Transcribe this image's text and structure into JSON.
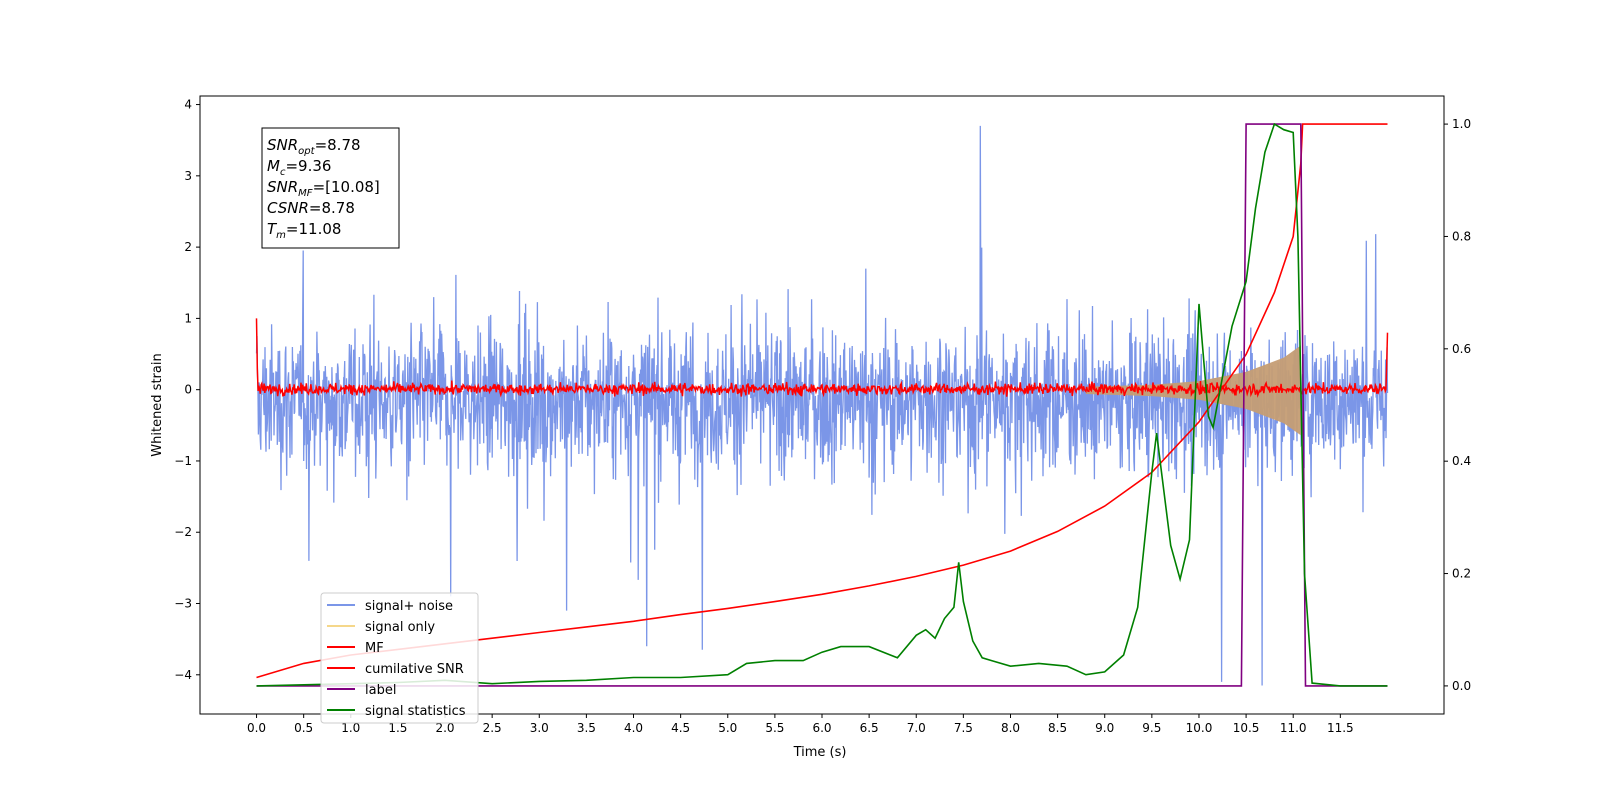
{
  "chart_data": {
    "type": "line",
    "xlabel": "Time (s)",
    "ylabel": "Whitened strain",
    "xlim": [
      -0.6,
      12.6
    ],
    "ylim": [
      -4.55,
      4.12
    ],
    "ylim_right": [
      -0.05,
      1.05
    ],
    "x_ticks": [
      0.0,
      0.5,
      1.0,
      1.5,
      2.0,
      2.5,
      3.0,
      3.5,
      4.0,
      4.5,
      5.0,
      5.5,
      6.0,
      6.5,
      7.0,
      7.5,
      8.0,
      8.5,
      9.0,
      9.5,
      10.0,
      10.5,
      11.0,
      11.5
    ],
    "x_tick_labels": [
      "0.0",
      "0.5",
      "1.0",
      "1.5",
      "2.0",
      "2.5",
      "3.0",
      "3.5",
      "4.0",
      "4.5",
      "5.0",
      "5.5",
      "6.0",
      "6.5",
      "7.0",
      "7.5",
      "8.0",
      "8.5",
      "9.0",
      "9.5",
      "10.0",
      "10.5",
      "11.0",
      "11.5"
    ],
    "y_ticks_left": [
      -4,
      -3,
      -2,
      -1,
      0,
      1,
      2,
      3,
      4
    ],
    "y_tick_labels_left": [
      "−4",
      "−3",
      "−2",
      "−1",
      "0",
      "1",
      "2",
      "3",
      "4"
    ],
    "y_ticks_right": [
      0.0,
      0.2,
      0.4,
      0.6,
      0.8,
      1.0
    ],
    "y_tick_labels_right": [
      "0.0",
      "0.2",
      "0.4",
      "0.6",
      "0.8",
      "1.0"
    ],
    "grid": false,
    "legend_position": "lower-left",
    "colors": {
      "signal_noise": "#7b96e8",
      "signal_only": "#c59d74",
      "mf": "#ff0000",
      "cumulative_snr": "#ff0000",
      "label": "#800080",
      "signal_statistics": "#008000"
    },
    "series": [
      {
        "name": "signal+ noise",
        "axis": "left",
        "x_range": [
          0.0,
          12.0
        ],
        "amplitude_band": [
          -1.9,
          1.5
        ],
        "peaks": [
          {
            "x": 7.68,
            "y": 3.7
          },
          {
            "x": 2.06,
            "y": -2.9
          },
          {
            "x": 3.29,
            "y": -3.1
          },
          {
            "x": 4.14,
            "y": -3.6
          },
          {
            "x": 4.73,
            "y": -3.65
          },
          {
            "x": 10.24,
            "y": -4.1
          },
          {
            "x": 10.67,
            "y": -4.15
          }
        ]
      },
      {
        "name": "signal only",
        "axis": "left",
        "x_range": [
          8.8,
          11.2
        ],
        "envelope": [
          [
            8.8,
            0.04
          ],
          [
            9.5,
            0.07
          ],
          [
            10.0,
            0.12
          ],
          [
            10.5,
            0.25
          ],
          [
            10.9,
            0.45
          ],
          [
            11.08,
            0.62
          ]
        ]
      },
      {
        "name": "MF",
        "axis": "left",
        "x_range": [
          0.0,
          12.0
        ],
        "amplitude_band": [
          -0.12,
          0.15
        ],
        "edges": {
          "start": 1.0,
          "end": 0.8
        }
      },
      {
        "name": "cumilative SNR",
        "axis": "right",
        "x": [
          0.0,
          0.5,
          1.0,
          1.5,
          2.0,
          2.5,
          3.0,
          3.5,
          4.0,
          4.5,
          5.0,
          5.5,
          6.0,
          6.5,
          7.0,
          7.5,
          8.0,
          8.5,
          9.0,
          9.5,
          10.0,
          10.5,
          10.8,
          11.0,
          11.08,
          11.1,
          12.0
        ],
        "values": [
          0.015,
          0.04,
          0.055,
          0.065,
          0.075,
          0.085,
          0.095,
          0.105,
          0.115,
          0.127,
          0.138,
          0.15,
          0.163,
          0.178,
          0.195,
          0.215,
          0.24,
          0.275,
          0.32,
          0.38,
          0.47,
          0.59,
          0.7,
          0.8,
          0.93,
          1.0,
          1.0
        ]
      },
      {
        "name": "label",
        "axis": "right",
        "x": [
          0.0,
          10.45,
          10.5,
          11.08,
          11.13,
          12.0
        ],
        "values": [
          0.0,
          0.0,
          1.0,
          1.0,
          0.0,
          0.0
        ]
      },
      {
        "name": "signal statistics",
        "axis": "right",
        "x": [
          0.0,
          0.5,
          1.0,
          1.5,
          2.0,
          2.5,
          3.0,
          3.5,
          4.0,
          4.5,
          5.0,
          5.2,
          5.5,
          5.8,
          6.0,
          6.2,
          6.5,
          6.8,
          7.0,
          7.1,
          7.2,
          7.3,
          7.4,
          7.45,
          7.5,
          7.6,
          7.7,
          7.8,
          8.0,
          8.3,
          8.6,
          8.8,
          9.0,
          9.2,
          9.35,
          9.5,
          9.55,
          9.7,
          9.8,
          9.9,
          10.0,
          10.1,
          10.15,
          10.25,
          10.35,
          10.5,
          10.6,
          10.7,
          10.8,
          10.9,
          11.0,
          11.05,
          11.12,
          11.2,
          11.5,
          12.0
        ],
        "values": [
          0.0,
          0.002,
          0.004,
          0.006,
          0.01,
          0.004,
          0.008,
          0.01,
          0.015,
          0.015,
          0.02,
          0.04,
          0.045,
          0.045,
          0.06,
          0.07,
          0.07,
          0.05,
          0.09,
          0.1,
          0.085,
          0.12,
          0.14,
          0.22,
          0.15,
          0.08,
          0.05,
          0.045,
          0.035,
          0.04,
          0.035,
          0.02,
          0.025,
          0.055,
          0.14,
          0.38,
          0.45,
          0.25,
          0.19,
          0.26,
          0.68,
          0.48,
          0.46,
          0.55,
          0.64,
          0.72,
          0.85,
          0.95,
          1.0,
          0.99,
          0.985,
          0.8,
          0.2,
          0.005,
          0.0,
          0.0
        ]
      }
    ],
    "annotation_box": [
      {
        "base": "SNR",
        "sub": "opt",
        "value": "=8.78"
      },
      {
        "base": "M",
        "sub": "c",
        "value": "=9.36"
      },
      {
        "base": "SNR",
        "sub": "MF",
        "value": "=[10.08]"
      },
      {
        "base": "CSNR",
        "sub": "",
        "value": "=8.78"
      },
      {
        "base": "T",
        "sub": "m",
        "value": "=11.08"
      }
    ],
    "legend": [
      "signal+ noise",
      "signal only",
      "MF",
      "cumilative SNR",
      "label",
      "signal statistics"
    ]
  }
}
